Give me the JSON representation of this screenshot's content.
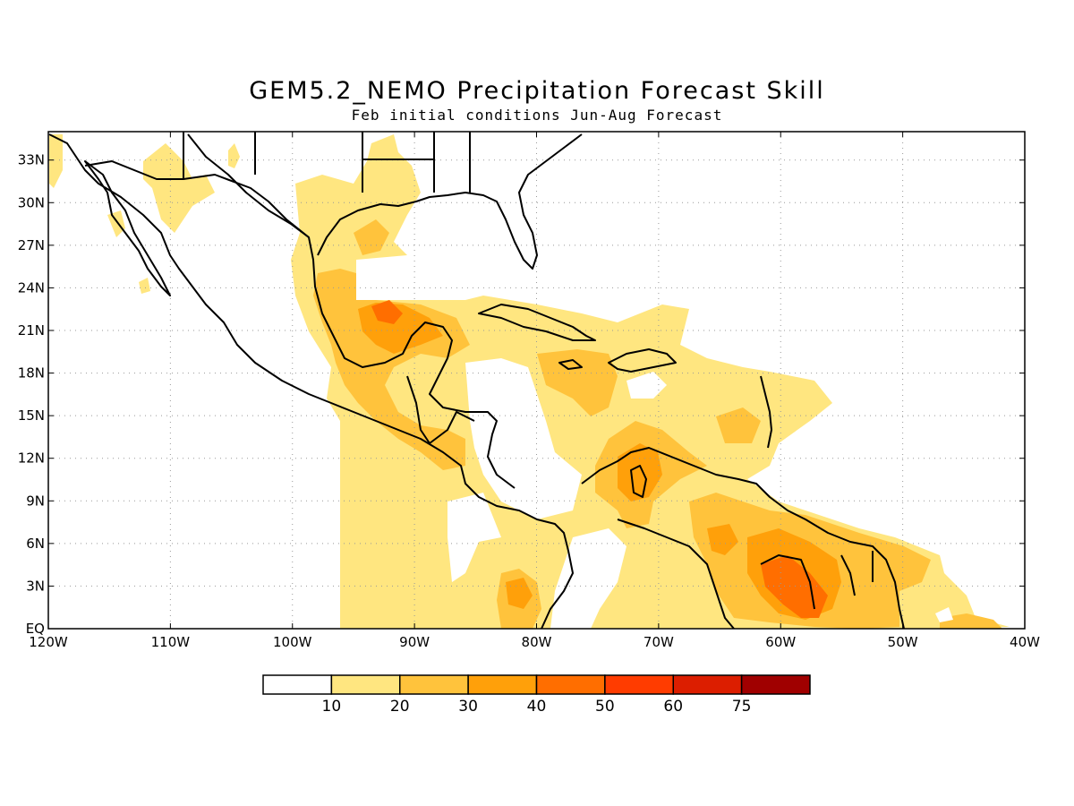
{
  "title": "GEM5.2_NEMO Precipitation Forecast Skill",
  "subtitle": "Feb initial conditions  Jun-Aug Forecast",
  "map": {
    "lon_range": [
      -120,
      -40
    ],
    "lat_range": [
      0,
      35
    ],
    "lon_ticks": [
      {
        "value": -120,
        "label": "120W"
      },
      {
        "value": -110,
        "label": "110W"
      },
      {
        "value": -100,
        "label": "100W"
      },
      {
        "value": -90,
        "label": "90W"
      },
      {
        "value": -80,
        "label": "80W"
      },
      {
        "value": -70,
        "label": "70W"
      },
      {
        "value": -60,
        "label": "60W"
      },
      {
        "value": -50,
        "label": "50W"
      },
      {
        "value": -40,
        "label": "40W"
      }
    ],
    "lat_ticks": [
      {
        "value": 0,
        "label": "EQ"
      },
      {
        "value": 3,
        "label": "3N"
      },
      {
        "value": 6,
        "label": "6N"
      },
      {
        "value": 9,
        "label": "9N"
      },
      {
        "value": 12,
        "label": "12N"
      },
      {
        "value": 15,
        "label": "15N"
      },
      {
        "value": 18,
        "label": "18N"
      },
      {
        "value": 21,
        "label": "21N"
      },
      {
        "value": 24,
        "label": "24N"
      },
      {
        "value": 27,
        "label": "27N"
      },
      {
        "value": 30,
        "label": "30N"
      },
      {
        "value": 33,
        "label": "33N"
      }
    ],
    "grid": true,
    "colors": {
      "c10": "#ffe680",
      "c20": "#ffc33c",
      "c30": "#ffa00a",
      "c40": "#ff6e00",
      "c50": "#ff3c00",
      "c60": "#dc1e00",
      "c75": "#a00000"
    }
  },
  "colorbar": {
    "colors": [
      "#ffffff",
      "#ffe680",
      "#ffc33c",
      "#ffa00a",
      "#ff6e00",
      "#ff3c00",
      "#dc1e00",
      "#a00000"
    ],
    "labels": [
      "10",
      "20",
      "30",
      "40",
      "50",
      "60",
      "75"
    ]
  }
}
